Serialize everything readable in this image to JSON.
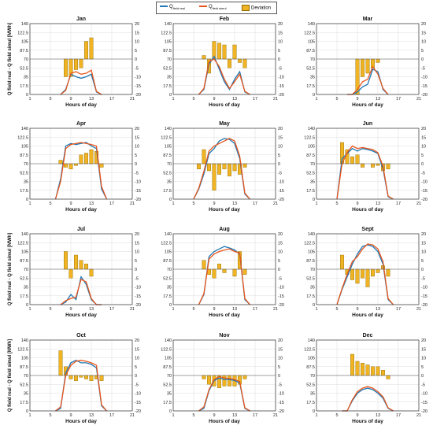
{
  "legend": {
    "items": [
      {
        "label": "Q",
        "sub": "field real",
        "color": "#1f77b4",
        "kind": "line"
      },
      {
        "label": "Q",
        "sub": "field simul",
        "color": "#e8561c",
        "kind": "line"
      },
      {
        "label": "Deviation",
        "sub": "",
        "color": "#f0b323",
        "kind": "bar"
      }
    ]
  },
  "chart_data": [
    {
      "type": "line+bar",
      "title": "Jan",
      "xlabel": "Hours of day",
      "ylabel_left": "Q field real - Q field simul [MWh]",
      "ylabel_right": "ΔQ [MWh]",
      "show_left_label": true,
      "show_right_label": false,
      "xlim": [
        1,
        21
      ],
      "xticks": [
        1,
        5,
        9,
        13,
        17,
        21
      ],
      "ylim": [
        0,
        140
      ],
      "yticks": [
        0,
        17.5,
        35,
        52.5,
        70,
        87.5,
        105,
        122.5,
        140
      ],
      "y2lim": [
        -20,
        20
      ],
      "y2ticks": [
        -20,
        -15,
        -10,
        -5,
        0,
        5,
        10,
        15,
        20
      ],
      "hours": [
        7,
        8,
        9,
        10,
        11,
        12,
        13,
        14,
        15
      ],
      "real": [
        0,
        10,
        40,
        35,
        32,
        35,
        40,
        5,
        0
      ],
      "simul": [
        0,
        8,
        42,
        45,
        40,
        42,
        48,
        6,
        0
      ],
      "deviation": [
        0,
        -10,
        -10,
        -6,
        -5,
        10,
        12,
        0,
        0
      ]
    },
    {
      "type": "line+bar",
      "title": "Feb",
      "xlabel": "Hours of day",
      "show_left_label": false,
      "show_right_label": false,
      "xlim": [
        1,
        21
      ],
      "xticks": [
        1,
        5,
        9,
        13,
        17,
        21
      ],
      "ylim": [
        0,
        140
      ],
      "yticks": [
        0,
        17.5,
        35,
        52.5,
        70,
        87.5,
        105,
        122.5,
        140
      ],
      "y2lim": [
        -20,
        20
      ],
      "y2ticks": [
        -20,
        -15,
        -10,
        -5,
        0,
        5,
        10,
        15,
        20
      ],
      "hours": [
        6,
        7,
        8,
        9,
        10,
        11,
        12,
        13,
        14,
        15,
        16
      ],
      "real": [
        0,
        10,
        60,
        75,
        50,
        25,
        10,
        30,
        45,
        5,
        0
      ],
      "simul": [
        0,
        12,
        65,
        70,
        55,
        30,
        12,
        25,
        40,
        6,
        0
      ],
      "deviation": [
        0,
        2,
        -8,
        10,
        9,
        8,
        -5,
        8,
        -2,
        -5,
        0
      ]
    },
    {
      "type": "line+bar",
      "title": "Mar",
      "xlabel": "Hours of day",
      "show_left_label": false,
      "show_right_label": true,
      "xlim": [
        1,
        21
      ],
      "xticks": [
        1,
        5,
        9,
        13,
        17,
        21
      ],
      "ylim": [
        0,
        140
      ],
      "yticks": [
        0,
        17.5,
        35,
        52.5,
        70,
        87.5,
        105,
        122.5,
        140
      ],
      "y2lim": [
        -20,
        20
      ],
      "y2ticks": [
        -20,
        -15,
        -10,
        -5,
        0,
        5,
        10,
        15,
        20
      ],
      "hours": [
        7,
        8,
        9,
        10,
        11,
        12,
        13,
        14,
        15
      ],
      "real": [
        0,
        0,
        5,
        15,
        20,
        50,
        45,
        10,
        0
      ],
      "simul": [
        0,
        0,
        10,
        25,
        30,
        55,
        40,
        12,
        0
      ],
      "deviation": [
        0,
        0,
        -20,
        -10,
        -8,
        -5,
        -2,
        0,
        0
      ]
    },
    {
      "type": "line+bar",
      "title": "Apr",
      "xlabel": "Hours of day",
      "show_left_label": false,
      "show_right_label": false,
      "xlim": [
        1,
        21
      ],
      "xticks": [
        1,
        5,
        9,
        13,
        17,
        21
      ],
      "ylim": [
        0,
        140
      ],
      "yticks": [
        0,
        17.5,
        35,
        52.5,
        70,
        87.5,
        105,
        122.5,
        140
      ],
      "y2lim": [
        -20,
        20
      ],
      "y2ticks": [
        -20,
        -15,
        -10,
        -5,
        0,
        5,
        10,
        15,
        20
      ],
      "hours": [
        6,
        7,
        8,
        9,
        10,
        11,
        12,
        13,
        14,
        15,
        16
      ],
      "real": [
        0,
        40,
        105,
        110,
        108,
        110,
        112,
        105,
        100,
        20,
        0
      ],
      "simul": [
        0,
        35,
        100,
        108,
        110,
        112,
        110,
        108,
        105,
        25,
        0
      ],
      "deviation": [
        0,
        2,
        -2,
        -3,
        -1,
        5,
        6,
        8,
        7,
        -2,
        0
      ]
    },
    {
      "type": "line+bar",
      "title": "May",
      "xlabel": "Hours of day",
      "show_left_label": false,
      "show_right_label": false,
      "xlim": [
        1,
        21
      ],
      "xticks": [
        1,
        5,
        9,
        13,
        17,
        21
      ],
      "ylim": [
        0,
        140
      ],
      "yticks": [
        0,
        17.5,
        35,
        52.5,
        70,
        87.5,
        105,
        122.5,
        140
      ],
      "y2lim": [
        -20,
        20
      ],
      "y2ticks": [
        -20,
        -15,
        -10,
        -5,
        0,
        5,
        10,
        15,
        20
      ],
      "hours": [
        5,
        6,
        7,
        8,
        9,
        10,
        11,
        12,
        13,
        14,
        15,
        16
      ],
      "real": [
        0,
        20,
        50,
        90,
        100,
        115,
        120,
        118,
        110,
        80,
        10,
        0
      ],
      "simul": [
        0,
        22,
        55,
        95,
        105,
        110,
        115,
        120,
        115,
        85,
        12,
        0
      ],
      "deviation": [
        0,
        -3,
        8,
        -4,
        -15,
        -6,
        -3,
        -7,
        -4,
        -6,
        -2,
        0
      ]
    },
    {
      "type": "line+bar",
      "title": "Jun",
      "xlabel": "Hours of day",
      "show_left_label": false,
      "show_right_label": true,
      "xlim": [
        1,
        21
      ],
      "xticks": [
        1,
        5,
        9,
        13,
        17,
        21
      ],
      "ylim": [
        0,
        140
      ],
      "yticks": [
        0,
        17.5,
        35,
        52.5,
        70,
        87.5,
        105,
        122.5,
        140
      ],
      "y2lim": [
        -20,
        20
      ],
      "y2ticks": [
        -20,
        -15,
        -10,
        -5,
        0,
        5,
        10,
        15,
        20
      ],
      "hours": [
        5,
        6,
        7,
        8,
        9,
        10,
        11,
        12,
        13,
        14,
        15,
        16
      ],
      "real": [
        0,
        80,
        90,
        100,
        95,
        100,
        98,
        95,
        90,
        60,
        5,
        0
      ],
      "simul": [
        0,
        70,
        92,
        105,
        100,
        102,
        100,
        98,
        92,
        65,
        6,
        0
      ],
      "deviation": [
        0,
        12,
        8,
        4,
        5,
        -2,
        0,
        -2,
        -1,
        -4,
        -3,
        0
      ]
    },
    {
      "type": "line+bar",
      "title": "Jul",
      "xlabel": "Hours of day",
      "show_left_label": true,
      "show_right_label": false,
      "xlim": [
        1,
        21
      ],
      "xticks": [
        1,
        5,
        9,
        13,
        17,
        21
      ],
      "ylim": [
        0,
        140
      ],
      "yticks": [
        0,
        17.5,
        35,
        52.5,
        70,
        87.5,
        105,
        122.5,
        140
      ],
      "y2lim": [
        -20,
        20
      ],
      "y2ticks": [
        -20,
        -15,
        -10,
        -5,
        0,
        5,
        10,
        15,
        20
      ],
      "hours": [
        7,
        8,
        9,
        10,
        11,
        12,
        13,
        14,
        15
      ],
      "real": [
        0,
        5,
        20,
        10,
        55,
        40,
        10,
        0,
        0
      ],
      "simul": [
        0,
        8,
        12,
        15,
        50,
        45,
        12,
        0,
        0
      ],
      "deviation": [
        0,
        10,
        -5,
        8,
        5,
        3,
        -4,
        0,
        0
      ]
    },
    {
      "type": "line+bar",
      "title": "Aug",
      "xlabel": "Hours of day",
      "show_left_label": false,
      "show_right_label": false,
      "xlim": [
        1,
        21
      ],
      "xticks": [
        1,
        5,
        9,
        13,
        17,
        21
      ],
      "ylim": [
        0,
        140
      ],
      "yticks": [
        0,
        17.5,
        35,
        52.5,
        70,
        87.5,
        105,
        122.5,
        140
      ],
      "y2lim": [
        -20,
        20
      ],
      "y2ticks": [
        -20,
        -15,
        -10,
        -5,
        0,
        5,
        10,
        15,
        20
      ],
      "hours": [
        6,
        7,
        8,
        9,
        10,
        11,
        12,
        13,
        14,
        15,
        16
      ],
      "real": [
        0,
        20,
        95,
        105,
        110,
        115,
        112,
        108,
        100,
        10,
        0
      ],
      "simul": [
        0,
        22,
        90,
        100,
        105,
        108,
        110,
        105,
        102,
        12,
        0
      ],
      "deviation": [
        0,
        5,
        -3,
        -5,
        3,
        -2,
        0,
        -4,
        10,
        -3,
        0
      ]
    },
    {
      "type": "line+bar",
      "title": "Sept",
      "xlabel": "Hours of day",
      "show_left_label": false,
      "show_right_label": true,
      "xlim": [
        1,
        21
      ],
      "xticks": [
        1,
        5,
        9,
        13,
        17,
        21
      ],
      "ylim": [
        0,
        140
      ],
      "yticks": [
        0,
        17.5,
        35,
        52.5,
        70,
        87.5,
        105,
        122.5,
        140
      ],
      "y2lim": [
        -20,
        20
      ],
      "y2ticks": [
        -20,
        -15,
        -10,
        -5,
        0,
        5,
        10,
        15,
        20
      ],
      "hours": [
        5,
        6,
        7,
        8,
        9,
        10,
        11,
        12,
        13,
        14,
        15,
        16
      ],
      "real": [
        0,
        30,
        55,
        80,
        100,
        115,
        118,
        115,
        105,
        80,
        10,
        0
      ],
      "simul": [
        0,
        32,
        60,
        85,
        95,
        110,
        120,
        118,
        110,
        85,
        12,
        0
      ],
      "deviation": [
        0,
        8,
        -3,
        -6,
        -8,
        -5,
        -10,
        -4,
        -2,
        2,
        -4,
        0
      ]
    },
    {
      "type": "line+bar",
      "title": "Oct",
      "xlabel": "Hours of day",
      "show_left_label": true,
      "show_right_label": false,
      "xlim": [
        1,
        21
      ],
      "xticks": [
        1,
        5,
        9,
        13,
        17,
        21
      ],
      "ylim": [
        0,
        140
      ],
      "yticks": [
        0,
        17.5,
        35,
        52.5,
        70,
        87.5,
        105,
        122.5,
        140
      ],
      "y2lim": [
        -20,
        20
      ],
      "y2ticks": [
        -20,
        -15,
        -10,
        -5,
        0,
        5,
        10,
        15,
        20
      ],
      "hours": [
        6,
        7,
        8,
        9,
        10,
        11,
        12,
        13,
        14,
        15,
        16
      ],
      "real": [
        0,
        5,
        75,
        95,
        100,
        95,
        95,
        92,
        85,
        10,
        0
      ],
      "simul": [
        0,
        8,
        70,
        90,
        98,
        100,
        98,
        95,
        90,
        12,
        0
      ],
      "deviation": [
        0,
        14,
        5,
        -2,
        -3,
        -1,
        -2,
        -3,
        -2,
        -3,
        0
      ]
    },
    {
      "type": "line+bar",
      "title": "Nov",
      "xlabel": "Hours of day",
      "show_left_label": false,
      "show_right_label": false,
      "xlim": [
        1,
        21
      ],
      "xticks": [
        1,
        5,
        9,
        13,
        17,
        21
      ],
      "ylim": [
        0,
        140
      ],
      "yticks": [
        0,
        17.5,
        35,
        52.5,
        70,
        87.5,
        105,
        122.5,
        140
      ],
      "y2lim": [
        -20,
        20
      ],
      "y2ticks": [
        -20,
        -15,
        -10,
        -5,
        0,
        5,
        10,
        15,
        20
      ],
      "hours": [
        6,
        7,
        8,
        9,
        10,
        11,
        12,
        13,
        14,
        15,
        16
      ],
      "real": [
        0,
        5,
        40,
        60,
        65,
        62,
        62,
        60,
        55,
        5,
        0
      ],
      "simul": [
        0,
        8,
        42,
        62,
        68,
        65,
        64,
        62,
        58,
        6,
        0
      ],
      "deviation": [
        0,
        -2,
        -5,
        -6,
        -7,
        -6,
        -6,
        -6,
        -5,
        -2,
        0
      ]
    },
    {
      "type": "line+bar",
      "title": "Dec",
      "xlabel": "Hours of day",
      "show_left_label": false,
      "show_right_label": true,
      "xlim": [
        1,
        21
      ],
      "xticks": [
        1,
        5,
        9,
        13,
        17,
        21
      ],
      "ylim": [
        0,
        140
      ],
      "yticks": [
        0,
        17.5,
        35,
        52.5,
        70,
        87.5,
        105,
        122.5,
        140
      ],
      "y2lim": [
        -20,
        20
      ],
      "y2ticks": [
        -20,
        -15,
        -10,
        -5,
        0,
        5,
        10,
        15,
        20
      ],
      "hours": [
        6,
        7,
        8,
        9,
        10,
        11,
        12,
        13,
        14,
        15,
        16
      ],
      "real": [
        0,
        0,
        20,
        35,
        42,
        45,
        42,
        35,
        25,
        5,
        0
      ],
      "simul": [
        0,
        0,
        22,
        38,
        45,
        48,
        45,
        38,
        28,
        6,
        0
      ],
      "deviation": [
        0,
        0,
        12,
        8,
        7,
        6,
        5,
        5,
        3,
        -2,
        0
      ]
    }
  ]
}
